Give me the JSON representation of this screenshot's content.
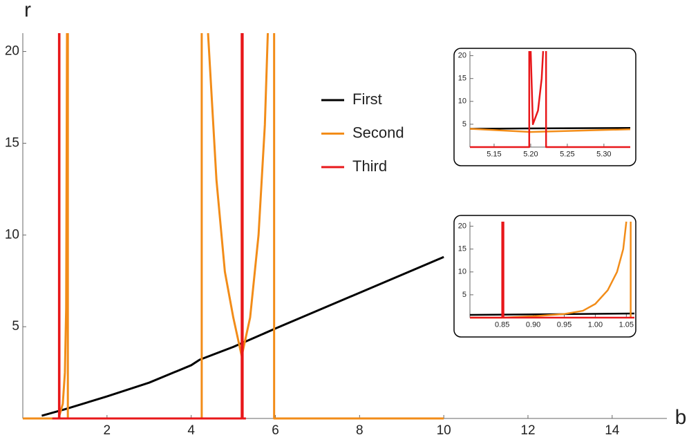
{
  "chart_data": [
    {
      "type": "line",
      "xlabel": "b",
      "ylabel": "r",
      "legend": "center",
      "xlim": [
        0,
        15.3
      ],
      "ylim": [
        0,
        21
      ],
      "xticks": [
        2,
        4,
        6,
        8,
        10,
        12,
        14
      ],
      "yticks": [
        5,
        10,
        15,
        20
      ],
      "series": [
        {
          "name": "First",
          "color": "#000000",
          "x": [
            0.45,
            1,
            2,
            3,
            4,
            4.2,
            5,
            6,
            8,
            10
          ],
          "values": [
            0.15,
            0.5,
            1.2,
            1.95,
            2.9,
            3.2,
            3.9,
            4.9,
            6.85,
            8.8
          ]
        },
        {
          "name": "Second",
          "color": "#f28c18",
          "x": [
            0,
            0.85,
            0.95,
            1.0,
            1.03,
            1.05,
            null,
            1.07,
            1.07,
            4.25,
            4.25,
            null,
            4.4,
            4.6,
            4.8,
            5.0,
            5.2,
            5.4,
            5.6,
            5.75,
            5.82,
            null,
            5.97,
            5.97,
            10
          ],
          "values": [
            0,
            0,
            0.8,
            2.5,
            6,
            21,
            null,
            21,
            0,
            0,
            21,
            null,
            21,
            13,
            8,
            5.5,
            3.4,
            5.5,
            10,
            16,
            21,
            null,
            21,
            0,
            0
          ]
        },
        {
          "name": "Third",
          "color": "#e8171a",
          "x": [
            0.7,
            0.86,
            0.86,
            null,
            0.87,
            0.87,
            5.2,
            5.2,
            null,
            5.201,
            5.205,
            5.21,
            5.215,
            5.218,
            null,
            5.222,
            5.222,
            5.3
          ],
          "values": [
            0,
            0,
            21,
            null,
            21,
            0,
            0,
            21,
            null,
            21,
            5.2,
            8,
            15,
            21,
            null,
            21,
            0,
            0
          ]
        }
      ]
    },
    {
      "type": "line",
      "xlim": [
        5.117,
        5.336
      ],
      "ylim": [
        0,
        21
      ],
      "xticks": [
        5.15,
        {
          "value": 5.2,
          "label": "5.20"
        },
        5.25,
        {
          "value": 5.3,
          "label": "5.30"
        }
      ],
      "yticks": [
        5,
        10,
        15,
        20
      ],
      "series": [
        {
          "color": "#000000",
          "x": [
            5.117,
            5.336
          ],
          "values": [
            4.0,
            4.2
          ]
        },
        {
          "color": "#f28c18",
          "x": [
            5.117,
            5.2,
            5.336
          ],
          "values": [
            4.0,
            3.3,
            3.9
          ]
        },
        {
          "color": "#e8171a",
          "x": [
            5.117,
            5.198,
            5.198,
            null,
            5.2,
            5.203,
            5.21,
            5.215,
            5.217,
            null,
            5.221,
            5.221,
            5.336
          ],
          "values": [
            0,
            0,
            21,
            null,
            21,
            5,
            8,
            15,
            21,
            null,
            21,
            0,
            0
          ]
        }
      ]
    },
    {
      "type": "line",
      "xlim": [
        0.798,
        1.063
      ],
      "ylim": [
        0,
        21
      ],
      "xticks": [
        0.85,
        {
          "value": 0.9,
          "label": "0.90"
        },
        0.95,
        {
          "value": 1,
          "label": "1.00"
        },
        1.05
      ],
      "yticks": [
        5,
        10,
        15,
        20
      ],
      "series": [
        {
          "color": "#000000",
          "x": [
            0.798,
            1.063
          ],
          "values": [
            0.6,
            0.9
          ]
        },
        {
          "color": "#f28c18",
          "x": [
            0.798,
            0.85,
            0.9,
            0.95,
            0.98,
            1.0,
            1.02,
            1.035,
            1.045,
            1.05,
            null,
            1.057,
            1.057
          ],
          "values": [
            0,
            0,
            0.3,
            0.8,
            1.5,
            3,
            6,
            10,
            15,
            21,
            null,
            21,
            0
          ]
        },
        {
          "color": "#e8171a",
          "x": [
            0.798,
            0.85,
            0.85,
            null,
            0.852,
            0.852,
            1.063
          ],
          "values": [
            0,
            0,
            21,
            null,
            21,
            0,
            0
          ]
        }
      ]
    }
  ]
}
